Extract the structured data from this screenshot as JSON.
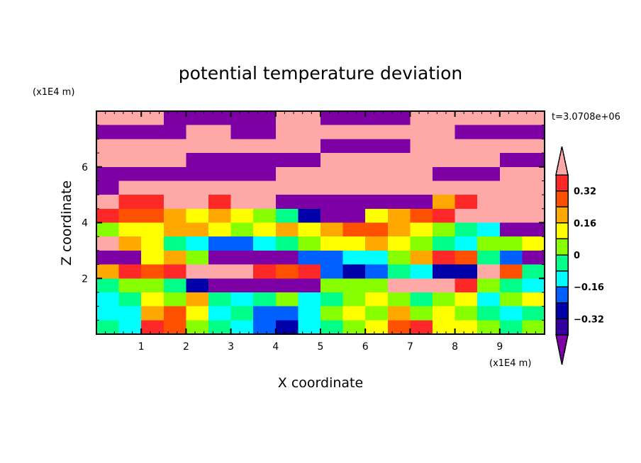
{
  "chart_data": {
    "type": "heatmap",
    "title": "potential temperature deviation",
    "xlabel": "X coordinate",
    "ylabel": "Z coordinate",
    "x_unit": "(x1E4 m)",
    "y_unit": "(x1E4 m)",
    "time_label": "t=3.0708e+06",
    "xlim": [
      0,
      10
    ],
    "ylim": [
      0,
      8
    ],
    "xticks": [
      1,
      2,
      3,
      4,
      5,
      6,
      7,
      8,
      9
    ],
    "yticks": [
      2,
      4,
      6
    ],
    "grid_note": "approximate coarse sampling; rows from top (z=7.75) to bottom (z=0.25), columns x=0.25..9.75",
    "z": [
      [
        0.44,
        0.44,
        0.44,
        -0.44,
        -0.44,
        -0.44,
        -0.44,
        -0.44,
        0.44,
        0.44,
        -0.44,
        -0.44,
        -0.44,
        -0.44,
        0.44,
        0.44,
        0.44,
        0.44,
        0.44,
        0.44
      ],
      [
        -0.44,
        -0.44,
        -0.44,
        -0.44,
        0.44,
        0.44,
        -0.44,
        -0.44,
        0.44,
        0.44,
        0.44,
        0.44,
        0.44,
        0.44,
        0.44,
        0.44,
        -0.44,
        -0.44,
        -0.44,
        -0.44
      ],
      [
        0.44,
        0.44,
        0.44,
        0.44,
        0.44,
        0.44,
        0.44,
        0.44,
        0.44,
        0.44,
        -0.44,
        -0.44,
        -0.44,
        -0.44,
        0.44,
        0.44,
        0.44,
        0.44,
        0.44,
        0.44
      ],
      [
        0.44,
        0.44,
        0.44,
        0.44,
        -0.44,
        -0.44,
        -0.44,
        -0.44,
        -0.44,
        -0.44,
        0.44,
        0.44,
        0.44,
        0.44,
        0.44,
        0.44,
        0.44,
        0.44,
        -0.44,
        -0.44
      ],
      [
        -0.44,
        -0.44,
        -0.44,
        -0.44,
        -0.44,
        -0.44,
        -0.44,
        -0.44,
        0.44,
        0.44,
        0.44,
        0.44,
        0.44,
        0.44,
        0.44,
        -0.44,
        -0.44,
        -0.44,
        0.44,
        0.44
      ],
      [
        -0.44,
        0.44,
        0.44,
        0.44,
        0.44,
        0.44,
        0.44,
        0.44,
        0.44,
        0.44,
        0.44,
        0.44,
        0.44,
        0.44,
        0.44,
        0.44,
        0.44,
        0.44,
        0.44,
        0.44
      ],
      [
        0.44,
        0.36,
        0.36,
        0.44,
        0.44,
        0.36,
        0.44,
        0.44,
        -0.44,
        -0.44,
        -0.44,
        -0.44,
        -0.44,
        -0.44,
        -0.44,
        0.2,
        0.36,
        0.44,
        0.44,
        0.44
      ],
      [
        0.36,
        0.28,
        0.28,
        0.2,
        0.12,
        0.2,
        0.12,
        0.04,
        -0.04,
        -0.28,
        -0.44,
        -0.44,
        0.12,
        0.2,
        0.28,
        0.36,
        0.44,
        0.44,
        0.44,
        0.44
      ],
      [
        0.04,
        0.12,
        0.12,
        0.2,
        0.2,
        0.12,
        0.04,
        0.12,
        0.2,
        0.12,
        0.2,
        0.28,
        0.28,
        0.2,
        0.12,
        0.04,
        -0.04,
        -0.12,
        -0.44,
        -0.44
      ],
      [
        0.44,
        0.2,
        0.12,
        -0.04,
        -0.12,
        -0.2,
        -0.2,
        -0.12,
        -0.04,
        0.04,
        0.12,
        0.12,
        0.2,
        0.12,
        0.04,
        -0.04,
        -0.12,
        0.04,
        0.04,
        0.12
      ],
      [
        -0.44,
        -0.44,
        0.12,
        0.2,
        0.04,
        -0.44,
        -0.44,
        -0.44,
        -0.44,
        -0.2,
        -0.2,
        -0.12,
        -0.12,
        0.04,
        0.2,
        0.36,
        0.28,
        -0.04,
        -0.2,
        -0.44
      ],
      [
        0.2,
        0.36,
        0.28,
        0.36,
        0.44,
        0.44,
        0.44,
        0.36,
        0.28,
        0.36,
        -0.2,
        -0.28,
        -0.2,
        -0.04,
        -0.12,
        -0.28,
        -0.28,
        0.44,
        0.28,
        -0.04
      ],
      [
        -0.04,
        0.04,
        0.04,
        -0.04,
        -0.28,
        -0.44,
        -0.44,
        -0.44,
        -0.44,
        -0.44,
        0.04,
        0.04,
        0.04,
        0.44,
        0.44,
        0.44,
        0.36,
        0.04,
        -0.04,
        -0.12
      ],
      [
        -0.12,
        -0.04,
        0.12,
        0.04,
        0.2,
        -0.04,
        -0.12,
        -0.04,
        0.04,
        -0.12,
        -0.04,
        0.04,
        0.12,
        0.04,
        -0.04,
        0.04,
        0.12,
        -0.12,
        0.04,
        0.12
      ],
      [
        -0.12,
        -0.12,
        0.2,
        0.28,
        0.12,
        -0.12,
        -0.04,
        -0.2,
        -0.2,
        -0.12,
        0.04,
        0.12,
        0.04,
        0.2,
        0.04,
        0.12,
        0.04,
        -0.04,
        -0.12,
        -0.04
      ],
      [
        -0.04,
        -0.12,
        0.36,
        0.28,
        0.04,
        -0.04,
        -0.12,
        -0.2,
        -0.28,
        -0.12,
        -0.04,
        0.04,
        0.12,
        0.28,
        0.36,
        0.12,
        0.12,
        0.04,
        -0.04,
        0.04
      ]
    ],
    "colorbar": {
      "boundaries": [
        -0.4,
        -0.32,
        -0.24,
        -0.16,
        -0.08,
        0,
        0.08,
        0.16,
        0.24,
        0.32,
        0.4
      ],
      "colors": [
        "#7c00a4",
        "#3300a0",
        "#0000a8",
        "#0060ff",
        "#00ffff",
        "#00ff88",
        "#88ff00",
        "#ffff00",
        "#ffa800",
        "#ff5000",
        "#ff2828",
        "#ffa8a8"
      ],
      "labels": [
        {
          "value": 0.32,
          "text": "0.32"
        },
        {
          "value": 0.16,
          "text": "0.16"
        },
        {
          "value": 0,
          "text": "0"
        },
        {
          "value": -0.16,
          "text": "−0.16"
        },
        {
          "value": -0.32,
          "text": "−0.32"
        }
      ],
      "extend": "both"
    }
  }
}
